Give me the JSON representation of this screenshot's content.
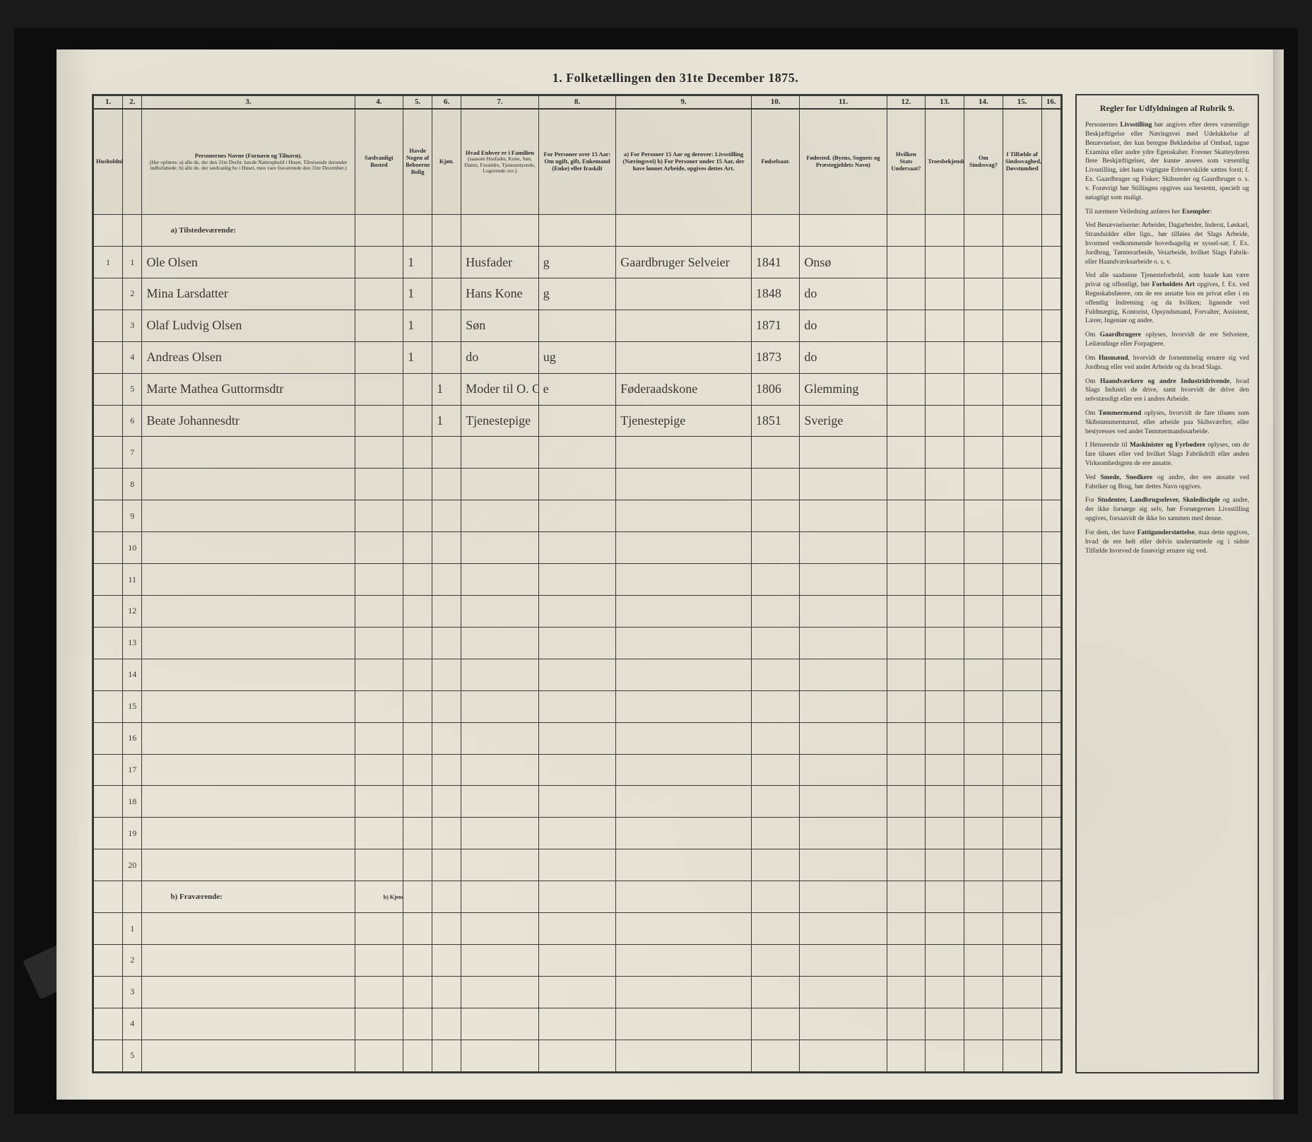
{
  "page": {
    "title": "1. Folketællingen den 31te December 1875.",
    "background": "#e8e4d8",
    "ink": "#2a2a28",
    "handwriting_color": "#3a3530"
  },
  "columns": {
    "numbers": [
      "1.",
      "2.",
      "3.",
      "4.",
      "5.",
      "6.",
      "7.",
      "8.",
      "9.",
      "10.",
      "11.",
      "12.",
      "13.",
      "14.",
      "15.",
      "16."
    ],
    "widths_pct": [
      3,
      2,
      22,
      5,
      3,
      3,
      8,
      8,
      14,
      5,
      9,
      4,
      4,
      4,
      4,
      2
    ],
    "headers": [
      "Husholdninger.",
      "",
      "Personernes Navne (Fornavn og Tilnavn).",
      "Sædvanligt Bosted",
      "Havde Nogen af Beboerne Bolig",
      "Kjøn.",
      "Hvad Enhver er i Familien",
      "For Personer over 15 Aar: Om ugift, gift, Enkemand (Enke) eller fraskilt",
      "a) For Personer 15 Aar og derover: Livsstilling (Næringsvei)  b) For Personer under 15 Aar, der have lønnet Arbeide, opgives dettes Art.",
      "Fødselsaar.",
      "Fødested. (Byens, Sognets og Præstegjeldets Navn)",
      "Hvilken Stats Undersaat?",
      "Troesbekjendelse.",
      "Om Sindssvag?",
      "I Tilfælde af Sindssvaghed, Døvstumhed",
      ""
    ],
    "sub3": "(Her opføres: a) alle de, der den 31te Decbr. havde Natteophold i Huset, Tilreisende derunder indbefattede; b) alle de, der sædvanlig bo i Huset, men vare fraværende den 31te December.)",
    "sub7": "(saasom Husfader, Kone, Søn, Datter, Forældre, Tjenestetyende, Logerende osv.)"
  },
  "sections": {
    "present": "a) Tilstedeværende:",
    "absent": "b) Fraværende:",
    "absent_col4": "b) Kjendt eller formodet Opholdssted."
  },
  "rows": [
    {
      "n": "1",
      "hh": "1",
      "name": "Ole Olsen",
      "c4": "",
      "c5": "1",
      "c6": "",
      "role": "Husfader",
      "civ": "g",
      "occ": "Gaardbruger Selveier",
      "year": "1841",
      "place": "Onsø"
    },
    {
      "n": "2",
      "hh": "",
      "name": "Mina Larsdatter",
      "c4": "",
      "c5": "1",
      "c6": "",
      "role": "Hans Kone",
      "civ": "g",
      "occ": "",
      "year": "1848",
      "place": "do"
    },
    {
      "n": "3",
      "hh": "",
      "name": "Olaf Ludvig Olsen",
      "c4": "",
      "c5": "1",
      "c6": "",
      "role": "Søn",
      "civ": "",
      "occ": "",
      "year": "1871",
      "place": "do"
    },
    {
      "n": "4",
      "hh": "",
      "name": "Andreas Olsen",
      "c4": "",
      "c5": "1",
      "c6": "",
      "role": "do",
      "civ": "ug",
      "occ": "",
      "year": "1873",
      "place": "do"
    },
    {
      "n": "5",
      "hh": "",
      "name": "Marte Mathea Guttormsdtr",
      "c4": "",
      "c5": "",
      "c6": "1",
      "role": "Moder til O. Olsen",
      "civ": "e",
      "occ": "Føderaadskone",
      "year": "1806",
      "place": "Glemming"
    },
    {
      "n": "6",
      "hh": "",
      "name": "Beate Johannesdtr",
      "c4": "",
      "c5": "",
      "c6": "1",
      "role": "Tjenestepige",
      "civ": "",
      "occ": "Tjenestepige",
      "year": "1851",
      "place": "Sverige"
    }
  ],
  "empty_present": [
    "7",
    "8",
    "9",
    "10",
    "11",
    "12",
    "13",
    "14",
    "15",
    "16",
    "17",
    "18",
    "19",
    "20"
  ],
  "empty_absent": [
    "1",
    "2",
    "3",
    "4",
    "5"
  ],
  "sidebar": {
    "title": "Regler for Udfyldningen af Rubrik 9.",
    "paragraphs": [
      "Personernes <b>Livsstilling</b> bør angives efter deres væsentlige Beskjæftigelse eller Næringsvei med Udelukkelse af Benævnelser, der kun betegne Beklædelse af Ombud, tagne Examina eller andre ydre Egenskaber. Forener Skatteyderen flere Beskjæftigelser, der kunne ansees som væsentlig Livsstilling, idet hans vigtigste Erhvervskilde sættes forst; f. Ex. Gaardbruger og Fisker; Skibsreder og Gaardbruger o. s. v. Forøvrigt bør Stillingen opgives saa bestemt, specielt og nøiagtigt som muligt.",
      "Til nærmere Veiledning anføres her <b>Exempler</b>:",
      "Ved Benævnelserne: Arbeider, Dagarbeider, Inderst, Løskarl, Strandsidder eller lign., bør tilføies det Slags Arbeide, hvormed vedkommende hovedsagelig er syssel-sat; f. Ex. Jordbrug, Tømterarbeide, Veiarbeide, hvilket Slags Fabrik- eller Haandværksarbeide o. s. v.",
      "Ved alle saadanne Tjenesteforhold, som baade kan være privat og offentligt, bør <b>Forholdets Art</b> opgives, f. Ex. ved Regnskabsførere, om de ere ansatte hos en privat eller i en offentlig Indretning og da hvilken; lignende ved Fuldmægtig, Kontorist, Opsyndsmand, Forvalter, Assistent, Lærer, Ingeniør og andre.",
      "Om <b>Gaardbrugere</b> oplyses, hvorvidt de ere Selveiere, Leilændinge eller Forpagtere.",
      "Om <b>Husmænd</b>, hvorvidt de fornemmelig ernære sig ved Jordbrug eller ved andet Arbeide og da hvad Slags.",
      "Om <b>Haandværkere og andre Industridrivende</b>, hvad Slags Industri de drive, samt hvorvidt de drive den selvstændigt eller ere i andres Arbeide.",
      "Om <b>Tømmermænd</b> oplyses, hvorvidt de fare tilsøes som Skibstømmermænd, eller arbeide paa Skibsværfter, eller bestyresses ved andet Tømmermandssarbeide.",
      "I Henseende til <b>Maskinister og Fyrbødere</b> oplyses, om de fare tilsøes eller ved hvilket Slags Fabrikdrift eller anden Virksomhedsgren de ere ansatte.",
      "Ved <b>Smede, Snedkere</b> og andre, der ere ansatte ved Fabriker og Brug, bør dettes Navn opgives.",
      "For <b>Studenter, Landbrugselever, Skoledisciple</b> og andre, der ikke forsørge sig selv, bør Forsørgernes Livsstilling opgives, forsaavidt de ikke bo sammen med denne.",
      "For dem, der have <b>Fattigunderstøttelse</b>, maa dette opgives, hvad de ere helt eller delvis understøttede og i sidste Tilfælde hvorved de forøvrigt ernære sig ved."
    ]
  }
}
